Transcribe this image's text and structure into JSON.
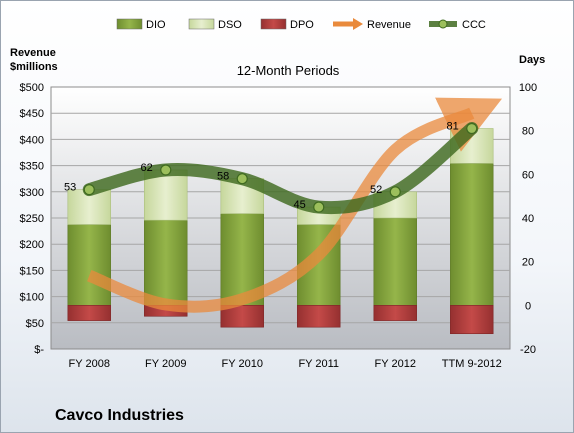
{
  "chart_data": {
    "type": "bar",
    "subtitle": "12-Month Periods",
    "company": "Cavco Industries",
    "categories": [
      "FY 2008",
      "FY 2009",
      "FY 2010",
      "FY 2011",
      "FY 2012",
      "TTM 9-2012"
    ],
    "left_axis": {
      "label_line1": "Revenue",
      "label_line2": "$millions",
      "range": [
        0,
        500
      ],
      "ticks": [
        0,
        50,
        100,
        150,
        200,
        250,
        300,
        350,
        400,
        450,
        500
      ],
      "tick_labels": [
        "$-",
        "$50",
        "$100",
        "$150",
        "$200",
        "$250",
        "$300",
        "$350",
        "$400",
        "$450",
        "$500"
      ]
    },
    "right_axis": {
      "label": "Days",
      "range": [
        -20,
        100
      ],
      "ticks": [
        -20,
        0,
        20,
        40,
        60,
        80,
        100
      ],
      "tick_labels": [
        "-20",
        "0",
        "20",
        "40",
        "60",
        "80",
        "100"
      ]
    },
    "series": [
      {
        "name": "DIO",
        "kind": "bar",
        "axis": "right",
        "values": [
          37,
          39,
          42,
          37,
          40,
          65
        ],
        "color": "#7f9f3b"
      },
      {
        "name": "DSO",
        "kind": "bar",
        "axis": "right",
        "values": [
          16,
          23,
          16,
          8,
          12,
          16
        ],
        "color": "#d7e4b3"
      },
      {
        "name": "DPO",
        "kind": "bar",
        "axis": "right",
        "values": [
          -7,
          -5,
          -10,
          -10,
          -7,
          -13
        ],
        "color": "#b03a38"
      },
      {
        "name": "Revenue",
        "kind": "line",
        "axis": "left",
        "values": [
          140,
          85,
          95,
          180,
          380,
          450
        ],
        "color": "#e98a3c"
      },
      {
        "name": "CCC",
        "kind": "line",
        "axis": "right",
        "values": [
          53,
          62,
          58,
          45,
          52,
          81
        ],
        "data_labels": [
          "53",
          "62",
          "58",
          "45",
          "52",
          "81"
        ],
        "color": "#4f7b2a"
      }
    ],
    "grid": true,
    "legend_position": "top"
  }
}
